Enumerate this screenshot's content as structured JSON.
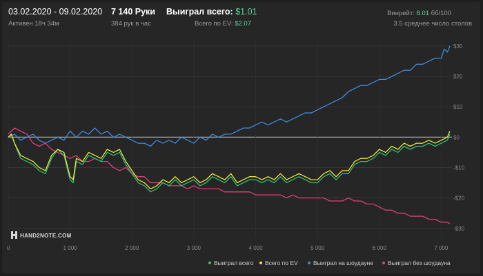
{
  "header": {
    "date_range": "03.02.2020 - 09.02.2020",
    "active_time": "Активен 18ч 34м",
    "hands": "7 140 Руки",
    "hands_per_hour": "384 рук в час",
    "won_total_label": "Выиграл всего:",
    "won_total_value": "$1.01",
    "ev_label": "Всего по EV:",
    "ev_value": "$2.07",
    "winrate_label": "Винрейт:",
    "winrate_value": "8.01",
    "winrate_unit": "бб/100",
    "avg_tables": "3.5 среднее число столов"
  },
  "logo": {
    "text": "HAND2NOTE.COM"
  },
  "colors": {
    "won_total": "#2fbf76",
    "ev": "#e8e83a",
    "showdown": "#3e8be0",
    "non_showdown": "#e0407a",
    "background": "#262626",
    "grid": "#3a3a3a"
  },
  "chart_data": {
    "type": "line",
    "xlabel": "",
    "ylabel": "",
    "xlim": [
      0,
      7140
    ],
    "ylim": [
      -33,
      32
    ],
    "x_ticks": [
      "0",
      "1 000",
      "2 000",
      "3 000",
      "4 000",
      "5 000",
      "6 000",
      "7 000"
    ],
    "y_ticks": [
      "$30",
      "$20",
      "$10",
      "$0",
      "-$10",
      "-$20",
      "-$30"
    ],
    "legend_position": "bottom-right",
    "series": [
      {
        "name": "Выиграл всего",
        "color": "#2fbf76",
        "x": [
          0,
          50,
          100,
          200,
          300,
          400,
          500,
          600,
          700,
          800,
          900,
          1000,
          1050,
          1100,
          1200,
          1300,
          1400,
          1500,
          1600,
          1700,
          1800,
          1900,
          2000,
          2100,
          2200,
          2300,
          2400,
          2500,
          2600,
          2700,
          2800,
          2900,
          3000,
          3100,
          3200,
          3300,
          3400,
          3500,
          3600,
          3700,
          3800,
          3900,
          4000,
          4100,
          4200,
          4300,
          4400,
          4500,
          4600,
          4700,
          4800,
          4900,
          5000,
          5100,
          5200,
          5300,
          5400,
          5500,
          5600,
          5700,
          5800,
          5900,
          6000,
          6100,
          6200,
          6300,
          6400,
          6500,
          6600,
          6700,
          6800,
          6900,
          7000,
          7100,
          7140
        ],
        "y": [
          0,
          1,
          -2,
          -7,
          -8,
          -9,
          -11,
          -12,
          -7,
          -4,
          -6,
          -14,
          -15,
          -8,
          -9,
          -6,
          -7,
          -8,
          -5,
          -6,
          -5,
          -9,
          -12,
          -15,
          -16,
          -18,
          -17,
          -15,
          -16,
          -14,
          -16,
          -15,
          -14,
          -16,
          -15,
          -13,
          -14,
          -15,
          -13,
          -16,
          -15,
          -14,
          -14,
          -15,
          -14,
          -15,
          -13,
          -15,
          -14,
          -13,
          -14,
          -15,
          -15,
          -13,
          -12,
          -14,
          -12,
          -12,
          -9,
          -8,
          -8,
          -7,
          -5,
          -6,
          -4,
          -5,
          -3,
          -4,
          -3,
          -3,
          -2,
          -3,
          -2,
          -1,
          1
        ]
      },
      {
        "name": "Всего по EV",
        "color": "#e8e83a",
        "x": [
          0,
          50,
          100,
          200,
          300,
          400,
          500,
          600,
          700,
          800,
          900,
          1000,
          1050,
          1100,
          1200,
          1300,
          1400,
          1500,
          1600,
          1700,
          1800,
          1900,
          2000,
          2100,
          2200,
          2300,
          2400,
          2500,
          2600,
          2700,
          2800,
          2900,
          3000,
          3100,
          3200,
          3300,
          3400,
          3500,
          3600,
          3700,
          3800,
          3900,
          4000,
          4100,
          4200,
          4300,
          4400,
          4500,
          4600,
          4700,
          4800,
          4900,
          5000,
          5100,
          5200,
          5300,
          5400,
          5500,
          5600,
          5700,
          5800,
          5900,
          6000,
          6100,
          6200,
          6300,
          6400,
          6500,
          6600,
          6700,
          6800,
          6900,
          7000,
          7100,
          7140
        ],
        "y": [
          0,
          1,
          -2,
          -6,
          -7,
          -8,
          -10,
          -11,
          -6,
          -4,
          -5,
          -13,
          -14,
          -7,
          -8,
          -5,
          -6,
          -7,
          -4,
          -5,
          -4,
          -8,
          -11,
          -14,
          -15,
          -17,
          -16,
          -14,
          -15,
          -13,
          -15,
          -14,
          -13,
          -15,
          -14,
          -12,
          -13,
          -14,
          -12,
          -15,
          -14,
          -13,
          -13,
          -14,
          -13,
          -14,
          -12,
          -14,
          -13,
          -12,
          -13,
          -14,
          -14,
          -12,
          -11,
          -13,
          -11,
          -11,
          -8,
          -7,
          -7,
          -6,
          -4,
          -5,
          -3,
          -4,
          -2,
          -3,
          -2,
          -2,
          -1,
          -2,
          -1,
          0,
          2
        ]
      },
      {
        "name": "Выиграл на шоудауне",
        "color": "#3e8be0",
        "x": [
          0,
          100,
          200,
          300,
          400,
          500,
          600,
          700,
          800,
          900,
          1000,
          1100,
          1200,
          1300,
          1400,
          1500,
          1600,
          1700,
          1800,
          1900,
          2000,
          2100,
          2200,
          2300,
          2400,
          2500,
          2600,
          2700,
          2800,
          2900,
          3000,
          3100,
          3200,
          3300,
          3400,
          3500,
          3600,
          3700,
          3800,
          3900,
          4000,
          4100,
          4200,
          4300,
          4400,
          4500,
          4600,
          4700,
          4800,
          4900,
          5000,
          5100,
          5200,
          5300,
          5400,
          5500,
          5600,
          5700,
          5800,
          5900,
          6000,
          6100,
          6200,
          6300,
          6400,
          6500,
          6600,
          6700,
          6800,
          6900,
          7000,
          7050,
          7100,
          7140
        ],
        "y": [
          0,
          1,
          -1,
          0,
          1,
          -1,
          -2,
          -1,
          0,
          -1,
          2,
          0,
          2,
          1,
          3,
          1,
          2,
          0,
          1,
          0,
          -1,
          -2,
          -2,
          -3,
          -1,
          -2,
          -1,
          -2,
          0,
          -1,
          -2,
          0,
          -1,
          1,
          0,
          1,
          1,
          2,
          3,
          3,
          4,
          5,
          4,
          5,
          6,
          5,
          6,
          7,
          8,
          8,
          9,
          10,
          11,
          12,
          13,
          15,
          16,
          17,
          17,
          18,
          19,
          19,
          20,
          21,
          22,
          22,
          24,
          24,
          25,
          26,
          26,
          29,
          28,
          30
        ]
      },
      {
        "name": "Выиграл без шоудауна",
        "color": "#e0407a",
        "x": [
          0,
          100,
          200,
          300,
          400,
          500,
          600,
          700,
          800,
          900,
          1000,
          1100,
          1200,
          1300,
          1400,
          1500,
          1600,
          1700,
          1800,
          1900,
          2000,
          2100,
          2200,
          2300,
          2400,
          2500,
          2600,
          2700,
          2800,
          2900,
          3000,
          3100,
          3200,
          3300,
          3400,
          3500,
          3600,
          3700,
          3800,
          3900,
          4000,
          4100,
          4200,
          4300,
          4400,
          4500,
          4600,
          4700,
          4800,
          4900,
          5000,
          5100,
          5200,
          5300,
          5400,
          5500,
          5600,
          5700,
          5800,
          5900,
          6000,
          6100,
          6200,
          6300,
          6400,
          6500,
          6600,
          6700,
          6800,
          6900,
          7000,
          7100,
          7140
        ],
        "y": [
          1,
          3,
          2,
          1,
          -2,
          -3,
          -2,
          -4,
          -5,
          -6,
          -7,
          -6,
          -8,
          -8,
          -7,
          -8,
          -8,
          -10,
          -11,
          -10,
          -12,
          -13,
          -13,
          -15,
          -15,
          -15,
          -16,
          -16,
          -16,
          -17,
          -16,
          -17,
          -17,
          -17,
          -17,
          -18,
          -18,
          -18,
          -18,
          -18,
          -19,
          -19,
          -19,
          -19,
          -19,
          -20,
          -19,
          -20,
          -20,
          -20,
          -20,
          -20,
          -21,
          -21,
          -21,
          -20,
          -21,
          -21,
          -22,
          -22,
          -23,
          -24,
          -24,
          -25,
          -25,
          -26,
          -26,
          -26,
          -27,
          -27,
          -28,
          -28,
          -28.5
        ]
      }
    ]
  }
}
